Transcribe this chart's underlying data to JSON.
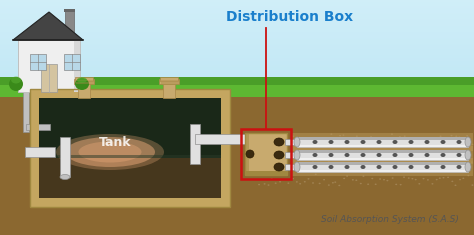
{
  "title": "Distribution Box",
  "sas_label": "Soil Absorption System (S.A.S)",
  "tank_label": "Tank",
  "sky_top_color": "#A8DCEF",
  "sky_bottom_color": "#C8EAF8",
  "grass_dark": "#4A9E28",
  "grass_light": "#5DB832",
  "soil_top_color": "#9B7840",
  "soil_mid_color": "#8B6830",
  "soil_dark_color": "#6B4E20",
  "tank_outline_color": "#C8AA6E",
  "tank_wall_color": "#C4A660",
  "tank_water_dark": "#1a2818",
  "tank_water_mid": "#223020",
  "tank_pink_color": "#D4906A",
  "tank_pink_glow": "#E8A878",
  "dbox_color": "#C8AA6E",
  "dbox_shadow": "#A08840",
  "pipe_light": "#E0E0E0",
  "pipe_mid": "#C0C0C0",
  "pipe_dark": "#909090",
  "pipe_hole": "#555555",
  "red_box_color": "#CC1111",
  "title_color": "#1A7FCC",
  "label_color": "#555555",
  "white_color": "#FFFFFF",
  "house_wall": "#EFEFEF",
  "house_wall_shadow": "#D8D8D8",
  "house_roof": "#444444",
  "house_roof_tile": "#555555",
  "house_chimney": "#888888",
  "house_door": "#D4C4A0",
  "house_window": "#B8D8E8",
  "bush_color": "#3A8A1A",
  "bush_light": "#55AA30",
  "lid_color": "#C8AA6E",
  "lid_dark": "#A88848",
  "annot_line_color": "#CC1111",
  "gravel_color": "#B0956A"
}
